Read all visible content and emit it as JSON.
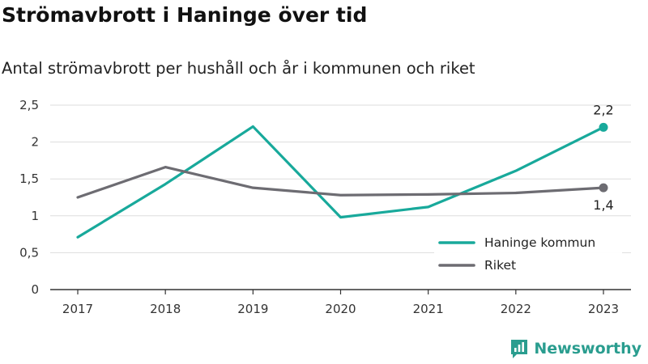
{
  "header": {
    "title": "Strömavbrott i Haninge över tid",
    "subtitle": "Antal strömavbrott per hushåll och år i kommunen och riket"
  },
  "brand": {
    "name": "Newsworthy",
    "icon": "newsworthy-logo-icon"
  },
  "colors": {
    "haninge": "#18a99b",
    "riket": "#6d6c72",
    "grid": "#dddddd",
    "axis": "#333333"
  },
  "chart_data": {
    "type": "line",
    "title": "Strömavbrott i Haninge över tid",
    "subtitle": "Antal strömavbrott per hushåll och år i kommunen och riket",
    "xlabel": "",
    "ylabel": "",
    "x": [
      "2017",
      "2018",
      "2019",
      "2020",
      "2021",
      "2022",
      "2023"
    ],
    "ylim": [
      0,
      2.5
    ],
    "yticks": [
      0,
      0.5,
      1,
      1.5,
      2,
      2.5
    ],
    "ytick_labels": [
      "0",
      "0,5",
      "1",
      "1,5",
      "2",
      "2,5"
    ],
    "grid": "horizontal",
    "legend_position": "bottom-right",
    "series": [
      {
        "name": "Haninge kommun",
        "color": "#18a99b",
        "values": [
          0.71,
          1.43,
          2.21,
          0.98,
          1.12,
          1.61,
          2.2
        ],
        "end_label": "2,2"
      },
      {
        "name": "Riket",
        "color": "#6d6c72",
        "values": [
          1.25,
          1.66,
          1.38,
          1.28,
          1.29,
          1.31,
          1.38
        ],
        "end_label": "1,4"
      }
    ]
  }
}
